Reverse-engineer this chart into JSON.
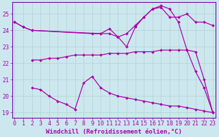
{
  "xlabel": "Windchill (Refroidissement éolien,°C)",
  "bg_color": "#cce8ee",
  "line_color": "#aa00aa",
  "grid_color": "#aacccc",
  "axis_color": "#7700aa",
  "xlim_min": -0.3,
  "xlim_max": 23.3,
  "ylim_min": 18.7,
  "ylim_max": 25.7,
  "xticks": [
    0,
    1,
    2,
    3,
    4,
    5,
    6,
    7,
    8,
    9,
    10,
    11,
    12,
    13,
    14,
    15,
    16,
    17,
    18,
    19,
    20,
    21,
    22,
    23
  ],
  "yticks": [
    19,
    20,
    21,
    22,
    23,
    24,
    25
  ],
  "curves": [
    {
      "x": [
        0,
        1,
        2,
        10,
        11,
        12,
        13,
        14,
        15,
        16,
        17,
        18,
        19,
        20,
        21,
        22,
        23
      ],
      "y": [
        24.5,
        24.2,
        24.0,
        23.8,
        23.8,
        23.6,
        23.8,
        24.3,
        24.8,
        25.3,
        25.4,
        24.8,
        24.8,
        25.0,
        24.5,
        24.5,
        24.3
      ]
    },
    {
      "x": [
        0,
        1,
        2,
        9,
        10,
        11,
        12,
        13,
        14,
        15,
        16,
        17,
        18,
        19,
        20,
        21,
        22,
        23
      ],
      "y": [
        24.5,
        24.2,
        24.0,
        23.8,
        23.8,
        24.1,
        23.6,
        23.0,
        24.2,
        24.8,
        25.3,
        25.5,
        25.3,
        24.5,
        22.8,
        21.5,
        20.5,
        19.0
      ]
    },
    {
      "x": [
        2,
        3,
        4,
        5,
        6,
        7,
        8,
        9,
        10,
        11,
        12,
        13,
        14,
        15,
        16,
        17,
        18,
        19,
        20,
        21,
        22,
        23
      ],
      "y": [
        22.2,
        22.2,
        22.3,
        22.3,
        22.4,
        22.5,
        22.5,
        22.5,
        22.5,
        22.6,
        22.6,
        22.6,
        22.7,
        22.7,
        22.7,
        22.8,
        22.8,
        22.8,
        22.8,
        22.7,
        21.0,
        19.0
      ]
    },
    {
      "x": [
        2,
        3,
        4,
        5,
        6,
        7,
        8,
        9,
        10,
        11,
        12,
        13,
        14,
        15,
        16,
        17,
        18,
        19,
        20,
        21,
        22,
        23
      ],
      "y": [
        20.5,
        20.4,
        20.0,
        19.7,
        19.5,
        19.2,
        20.8,
        21.2,
        20.5,
        20.2,
        20.0,
        19.9,
        19.8,
        19.7,
        19.6,
        19.5,
        19.4,
        19.4,
        19.3,
        19.2,
        19.1,
        19.0
      ]
    }
  ],
  "font_color": "#aa00aa",
  "tick_fontsize": 6,
  "label_fontsize": 6.5
}
